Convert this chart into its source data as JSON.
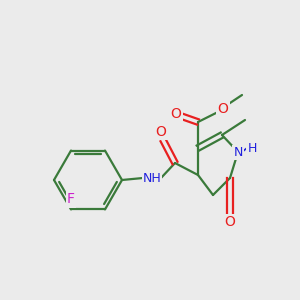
{
  "background_color": "#ebebeb",
  "bond_color": "#3a7a3a",
  "atom_colors": {
    "O": "#e82020",
    "N": "#2020dd",
    "F": "#cc22cc",
    "C": "#3a7a3a"
  },
  "figsize": [
    3.0,
    3.0
  ],
  "dpi": 100
}
